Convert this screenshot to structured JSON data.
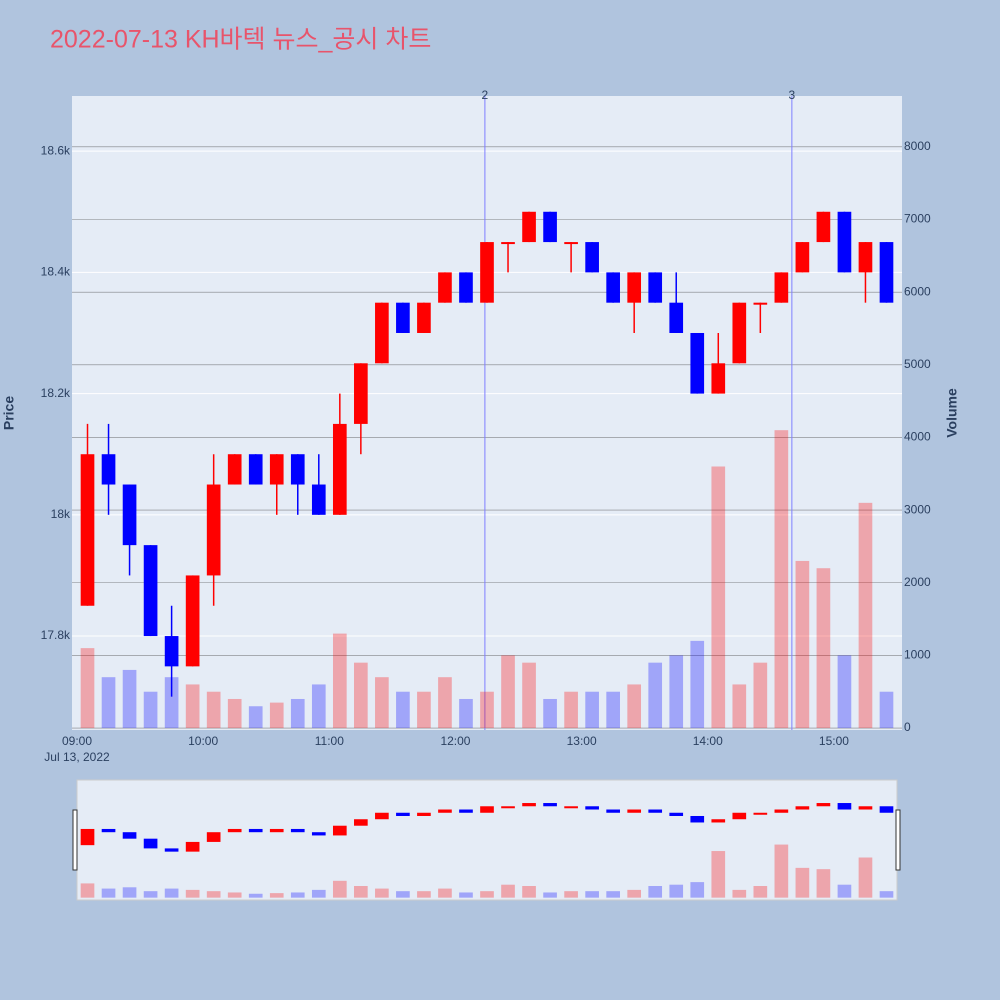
{
  "chart_data": {
    "type": "candlestick",
    "title": "2022-07-13 KH바텍 뉴스_공시 차트",
    "date_label": "Jul 13, 2022",
    "y_title": "Price",
    "y2_title": "Volume",
    "x": [
      "09:00",
      "09:10",
      "09:20",
      "09:30",
      "09:40",
      "09:50",
      "10:00",
      "10:10",
      "10:20",
      "10:30",
      "10:40",
      "10:50",
      "11:00",
      "11:10",
      "11:20",
      "11:30",
      "11:40",
      "11:50",
      "12:00",
      "12:10",
      "12:20",
      "12:30",
      "12:40",
      "12:50",
      "13:00",
      "13:10",
      "13:20",
      "13:30",
      "13:40",
      "13:50",
      "14:00",
      "14:10",
      "14:20",
      "14:30",
      "14:40",
      "14:50",
      "15:00",
      "15:10",
      "15:20"
    ],
    "open": [
      17850,
      18100,
      18050,
      17950,
      17800,
      17750,
      17900,
      18050,
      18100,
      18050,
      18100,
      18050,
      18000,
      18150,
      18250,
      18350,
      18300,
      18350,
      18400,
      18350,
      18450,
      18450,
      18500,
      18450,
      18450,
      18400,
      18350,
      18400,
      18350,
      18300,
      18200,
      18250,
      18350,
      18350,
      18400,
      18450,
      18500,
      18400,
      18450
    ],
    "high": [
      18150,
      18150,
      18050,
      17950,
      17850,
      17900,
      18100,
      18100,
      18100,
      18100,
      18100,
      18100,
      18200,
      18250,
      18350,
      18350,
      18350,
      18400,
      18400,
      18450,
      18450,
      18500,
      18500,
      18450,
      18450,
      18400,
      18400,
      18400,
      18400,
      18300,
      18300,
      18350,
      18350,
      18400,
      18450,
      18500,
      18500,
      18450,
      18450
    ],
    "low": [
      17850,
      18000,
      17900,
      17800,
      17700,
      17750,
      17850,
      18050,
      18050,
      18000,
      18000,
      18000,
      18000,
      18100,
      18250,
      18300,
      18300,
      18350,
      18350,
      18350,
      18400,
      18450,
      18450,
      18400,
      18400,
      18350,
      18300,
      18350,
      18300,
      18200,
      18200,
      18250,
      18300,
      18350,
      18400,
      18450,
      18400,
      18350,
      18350
    ],
    "close": [
      18100,
      18050,
      17950,
      17800,
      17750,
      17900,
      18050,
      18100,
      18050,
      18100,
      18050,
      18000,
      18150,
      18250,
      18350,
      18300,
      18350,
      18400,
      18350,
      18450,
      18450,
      18500,
      18450,
      18450,
      18400,
      18350,
      18400,
      18350,
      18300,
      18200,
      18250,
      18350,
      18350,
      18400,
      18450,
      18500,
      18400,
      18450,
      18350
    ],
    "volume": [
      1100,
      700,
      800,
      500,
      700,
      600,
      500,
      400,
      300,
      350,
      400,
      600,
      1300,
      900,
      700,
      500,
      500,
      700,
      400,
      500,
      1000,
      900,
      400,
      500,
      500,
      500,
      600,
      900,
      1000,
      1200,
      3600,
      600,
      900,
      4100,
      2300,
      2200,
      1000,
      3100,
      500
    ],
    "up_color": "#ff0000",
    "down_color": "#0000ff",
    "xlim": [
      "09:00",
      "15:30"
    ],
    "xticks": [
      "09:00",
      "10:00",
      "11:00",
      "12:00",
      "13:00",
      "14:00",
      "15:00"
    ],
    "ylim": [
      17645,
      18691
    ],
    "yticks": [
      {
        "value": 17800,
        "label": "17.8k"
      },
      {
        "value": 18000,
        "label": "18k"
      },
      {
        "value": 18200,
        "label": "18.2k"
      },
      {
        "value": 18400,
        "label": "18.4k"
      },
      {
        "value": 18600,
        "label": "18.6k"
      }
    ],
    "y2lim": [
      -27,
      8700
    ],
    "y2ticks": [
      0,
      1000,
      2000,
      3000,
      4000,
      5000,
      6000,
      7000,
      8000
    ],
    "annotations": [
      {
        "x": "12:14",
        "label": "2"
      },
      {
        "x": "14:40",
        "label": "3"
      }
    ],
    "grid": true
  }
}
